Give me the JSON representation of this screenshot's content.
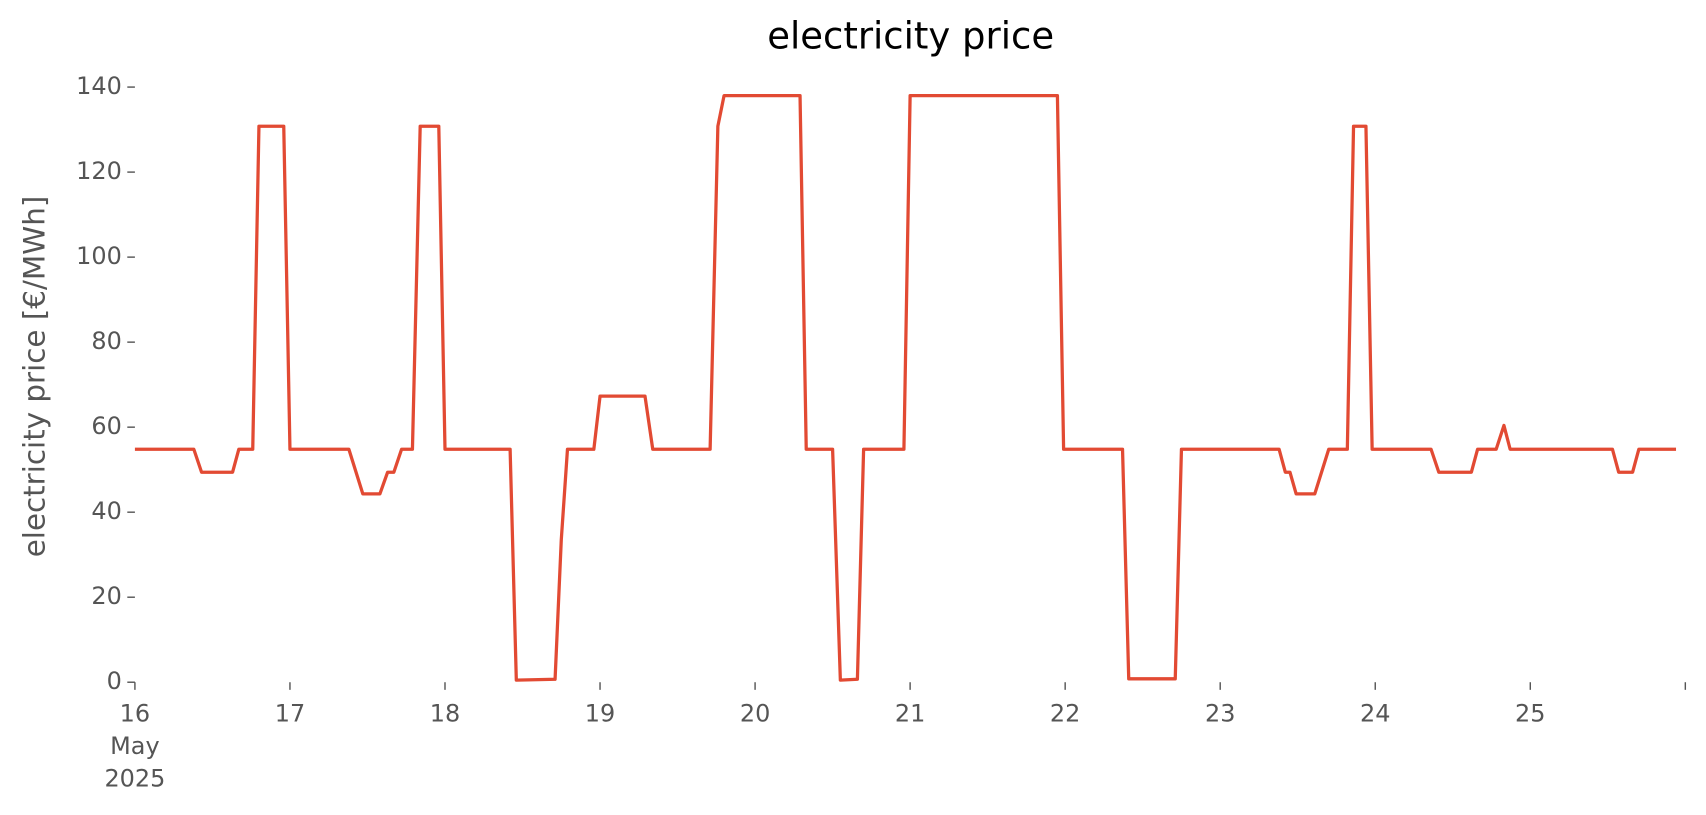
{
  "chart_data": {
    "type": "line",
    "title": "electricity price",
    "ylabel": "electricity price [€/MWh]",
    "color": "#e24a33",
    "grid": false,
    "xlim": [
      16,
      26
    ],
    "ylim": [
      0,
      140
    ],
    "xticks": [
      {
        "value": 16,
        "label": "16\nMay\n2025"
      },
      17,
      18,
      19,
      20,
      21,
      22,
      23,
      24,
      25,
      {
        "value": 26,
        "label": null
      }
    ],
    "yticks": [
      0,
      20,
      40,
      60,
      80,
      100,
      120,
      140
    ],
    "x": [
      16.0,
      16.38,
      16.43,
      16.63,
      16.67,
      16.76,
      16.8,
      16.96,
      17.0,
      17.38,
      17.47,
      17.58,
      17.63,
      17.67,
      17.72,
      17.79,
      17.84,
      17.96,
      18.0,
      18.42,
      18.46,
      18.71,
      18.75,
      18.79,
      18.96,
      19.0,
      19.29,
      19.34,
      19.71,
      19.76,
      19.8,
      20.29,
      20.33,
      20.5,
      20.55,
      20.66,
      20.7,
      20.96,
      21.0,
      21.95,
      21.99,
      22.37,
      22.41,
      22.71,
      22.75,
      23.38,
      23.42,
      23.45,
      23.49,
      23.61,
      23.7,
      23.82,
      23.86,
      23.94,
      23.98,
      24.36,
      24.41,
      24.62,
      24.66,
      24.78,
      24.83,
      24.87,
      25.53,
      25.57,
      25.66,
      25.7,
      25.94
    ],
    "values": [
      54.8,
      54.8,
      49.4,
      49.4,
      54.8,
      54.8,
      130.8,
      130.8,
      54.8,
      54.8,
      44.3,
      44.3,
      49.4,
      49.4,
      54.8,
      54.8,
      130.8,
      130.8,
      54.8,
      54.8,
      0.5,
      0.7,
      33.5,
      54.8,
      54.8,
      67.3,
      67.3,
      54.8,
      54.8,
      130.8,
      138.0,
      138.0,
      54.8,
      54.8,
      0.5,
      0.7,
      54.8,
      54.8,
      138.0,
      138.0,
      54.8,
      54.8,
      0.8,
      0.8,
      54.8,
      54.8,
      49.4,
      49.4,
      44.3,
      44.3,
      54.8,
      54.8,
      130.8,
      130.8,
      54.8,
      54.8,
      49.4,
      49.4,
      54.8,
      54.8,
      60.4,
      54.8,
      54.8,
      49.4,
      49.4,
      54.8,
      54.8
    ]
  }
}
